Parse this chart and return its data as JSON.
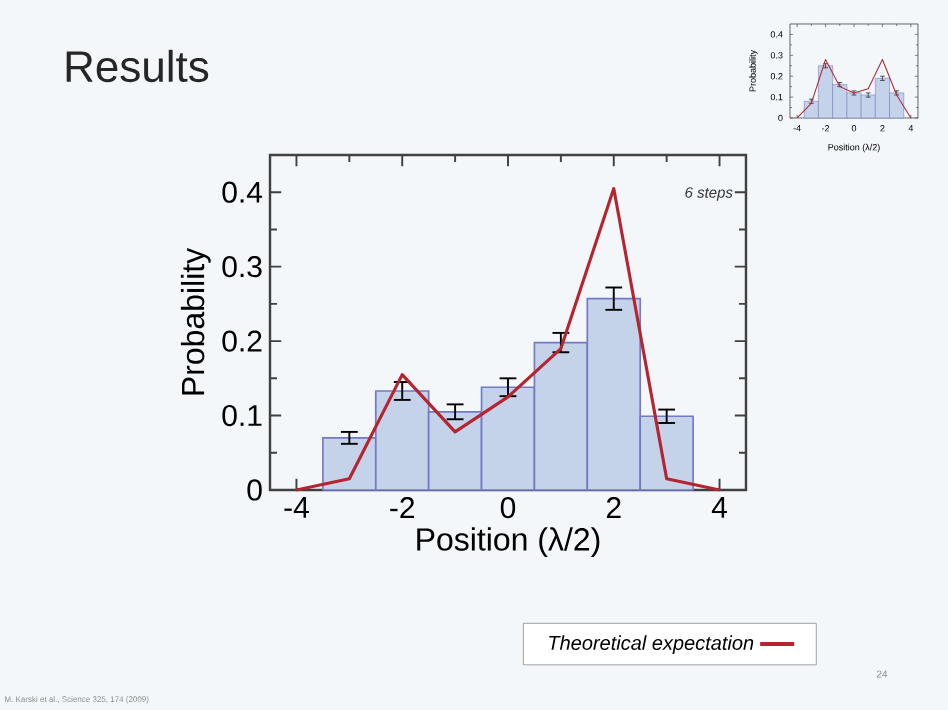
{
  "chart_data": [
    {
      "type": "histogram",
      "title": "Results",
      "xlabel": "Position (λ/2)",
      "ylabel": "Probability",
      "xlim": [
        -4.5,
        4.5
      ],
      "ylim": [
        0,
        0.45
      ],
      "xticks": [
        -4,
        -2,
        0,
        2,
        4
      ],
      "yticks": [
        0,
        0.1,
        0.2,
        0.3,
        0.4
      ],
      "legend": "bottom right",
      "annotations": [
        "6 steps",
        "M. Karski et al., Science 325, 174 (2009)",
        "24"
      ],
      "series": [
        {
          "color": "#c5d3ea",
          "bins": [
            -3.5,
            -2.5,
            -1.5,
            -0.5,
            0.5,
            1.5,
            2.5,
            3.5
          ],
          "values": [
            0.07,
            0.133,
            0.105,
            0.138,
            0.198,
            0.257,
            0.099
          ],
          "errors": [
            0.008,
            0.012,
            0.01,
            0.012,
            0.013,
            0.015,
            0.009
          ]
        },
        {
          "type": "line",
          "name": "Theoretical expectation",
          "color": "#b5252f",
          "x": [
            -4,
            -3,
            -2,
            -1,
            0,
            1,
            2,
            3,
            4
          ],
          "values": [
            0,
            0.015,
            0.155,
            0.078,
            0.125,
            0.19,
            0.405,
            0.015,
            0
          ]
        }
      ]
    },
    {
      "type": "histogram",
      "xlabel": "Position (λ/2)",
      "ylabel": "Probability",
      "xlim": [
        -4.5,
        4.5
      ],
      "ylim": [
        0,
        0.45
      ],
      "xticks": [
        -4,
        -2,
        0,
        2,
        4
      ],
      "yticks": [
        0,
        0.1,
        0.2,
        0.3,
        0.4
      ],
      "series": [
        {
          "color": "#c5d3ea",
          "bins": [
            -3.5,
            -2.5,
            -1.5,
            -0.5,
            0.5,
            1.5,
            2.5,
            3.5
          ],
          "values": [
            0.08,
            0.25,
            0.16,
            0.12,
            0.11,
            0.19,
            0.12
          ],
          "errors": [
            0.01,
            0.01,
            0.01,
            0.01,
            0.01,
            0.01,
            0.01
          ]
        },
        {
          "type": "line",
          "color": "#b5252f",
          "x": [
            -4,
            -3,
            -2,
            -1,
            0,
            1,
            2,
            3,
            4
          ],
          "values": [
            0,
            0.07,
            0.28,
            0.15,
            0.12,
            0.14,
            0.28,
            0.11,
            0
          ]
        }
      ]
    }
  ]
}
